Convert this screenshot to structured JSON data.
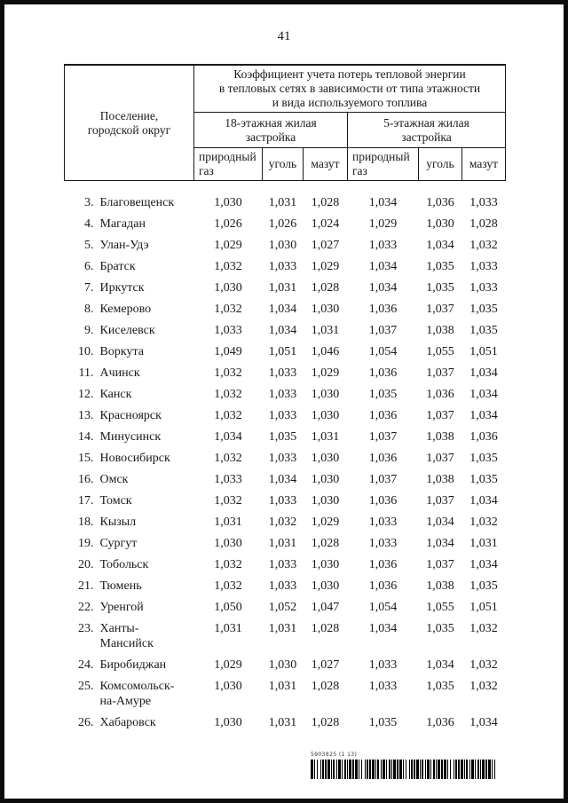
{
  "page": {
    "number": "41"
  },
  "table": {
    "header": {
      "settlement": "Поселение,\nгородской округ",
      "main": "Коэффициент учета потерь тепловой энергии\nв тепловых сетях в зависимости от типа этажности\nи вида используемого топлива",
      "group_18": "18-этажная жилая\nзастройка",
      "group_5": "5-этажная жилая\nзастройка",
      "col_gas": "природный\nгаз",
      "col_coal": "уголь",
      "col_oil": "мазут"
    },
    "rows": [
      {
        "num": "3.",
        "name": "Благовещенск",
        "values": [
          "1,030",
          "1,031",
          "1,028",
          "1,034",
          "1,036",
          "1,033"
        ]
      },
      {
        "num": "4.",
        "name": "Магадан",
        "values": [
          "1,026",
          "1,026",
          "1,024",
          "1,029",
          "1,030",
          "1,028"
        ]
      },
      {
        "num": "5.",
        "name": "Улан-Удэ",
        "values": [
          "1,029",
          "1,030",
          "1,027",
          "1,033",
          "1,034",
          "1,032"
        ]
      },
      {
        "num": "6.",
        "name": "Братск",
        "values": [
          "1,032",
          "1,033",
          "1,029",
          "1,034",
          "1,035",
          "1,033"
        ]
      },
      {
        "num": "7.",
        "name": "Иркутск",
        "values": [
          "1,030",
          "1,031",
          "1,028",
          "1,034",
          "1,035",
          "1,033"
        ]
      },
      {
        "num": "8.",
        "name": "Кемерово",
        "values": [
          "1,032",
          "1,034",
          "1,030",
          "1,036",
          "1,037",
          "1,035"
        ]
      },
      {
        "num": "9.",
        "name": "Киселевск",
        "values": [
          "1,033",
          "1,034",
          "1,031",
          "1,037",
          "1,038",
          "1,035"
        ]
      },
      {
        "num": "10.",
        "name": "Воркута",
        "values": [
          "1,049",
          "1,051",
          "1,046",
          "1,054",
          "1,055",
          "1,051"
        ]
      },
      {
        "num": "11.",
        "name": "Ачинск",
        "values": [
          "1,032",
          "1,033",
          "1,029",
          "1,036",
          "1,037",
          "1,034"
        ]
      },
      {
        "num": "12.",
        "name": "Канск",
        "values": [
          "1,032",
          "1,033",
          "1,030",
          "1,035",
          "1,036",
          "1,034"
        ]
      },
      {
        "num": "13.",
        "name": "Красноярск",
        "values": [
          "1,032",
          "1,033",
          "1,030",
          "1,036",
          "1,037",
          "1,034"
        ]
      },
      {
        "num": "14.",
        "name": "Минусинск",
        "values": [
          "1,034",
          "1,035",
          "1,031",
          "1,037",
          "1,038",
          "1,036"
        ]
      },
      {
        "num": "15.",
        "name": "Новосибирск",
        "values": [
          "1,032",
          "1,033",
          "1,030",
          "1,036",
          "1,037",
          "1,035"
        ]
      },
      {
        "num": "16.",
        "name": "Омск",
        "values": [
          "1,033",
          "1,034",
          "1,030",
          "1,037",
          "1,038",
          "1,035"
        ]
      },
      {
        "num": "17.",
        "name": "Томск",
        "values": [
          "1,032",
          "1,033",
          "1,030",
          "1,036",
          "1,037",
          "1,034"
        ]
      },
      {
        "num": "18.",
        "name": "Кызыл",
        "values": [
          "1,031",
          "1,032",
          "1,029",
          "1,033",
          "1,034",
          "1,032"
        ]
      },
      {
        "num": "19.",
        "name": "Сургут",
        "values": [
          "1,030",
          "1,031",
          "1,028",
          "1,033",
          "1,034",
          "1,031"
        ]
      },
      {
        "num": "20.",
        "name": "Тобольск",
        "values": [
          "1,032",
          "1,033",
          "1,030",
          "1,036",
          "1,037",
          "1,034"
        ]
      },
      {
        "num": "21.",
        "name": "Тюмень",
        "values": [
          "1,032",
          "1,033",
          "1,030",
          "1,036",
          "1,038",
          "1,035"
        ]
      },
      {
        "num": "22.",
        "name": "Уренгой",
        "values": [
          "1,050",
          "1,052",
          "1,047",
          "1,054",
          "1,055",
          "1,051"
        ]
      },
      {
        "num": "23.",
        "name": "Ханты-\nМансийск",
        "values": [
          "1,031",
          "1,031",
          "1,028",
          "1,034",
          "1,035",
          "1,032"
        ]
      },
      {
        "num": "24.",
        "name": "Биробиджан",
        "values": [
          "1,029",
          "1,030",
          "1,027",
          "1,033",
          "1,034",
          "1,032"
        ]
      },
      {
        "num": "25.",
        "name": "Комсомольск-\nна-Амуре",
        "values": [
          "1,030",
          "1,031",
          "1,028",
          "1,033",
          "1,035",
          "1,032"
        ]
      },
      {
        "num": "26.",
        "name": "Хабаровск",
        "values": [
          "1,030",
          "1,031",
          "1,028",
          "1,035",
          "1,036",
          "1,034"
        ]
      }
    ]
  },
  "footer": {
    "barcode_label": "5903825 (1 13)"
  }
}
